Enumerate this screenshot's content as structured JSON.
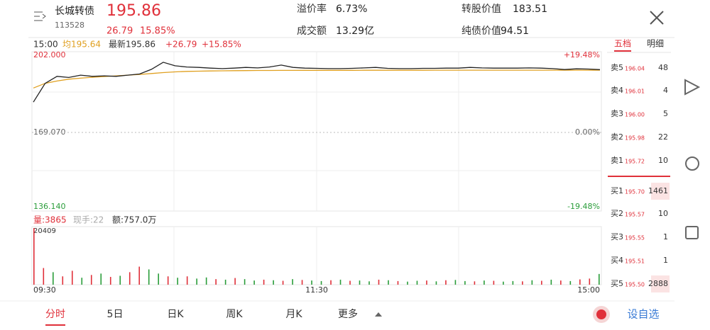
{
  "header": {
    "name": "长城转债",
    "code": "113528",
    "price": "195.86",
    "change": "26.79",
    "pct": "15.85%",
    "stats": [
      {
        "label": "溢价率",
        "value": "6.73%"
      },
      {
        "label": "转股价值",
        "value": "183.51"
      },
      {
        "label": "成交额",
        "value": "13.29亿"
      },
      {
        "label": "纯债价值",
        "value": "94.51"
      }
    ]
  },
  "info": {
    "time": "15:00",
    "avg": "均195.64",
    "latest": "最新195.86",
    "change": "+26.79",
    "pct": "+15.85%"
  },
  "price_chart": {
    "ylim": [
      136.14,
      202
    ],
    "yticks": [
      {
        "value": 202,
        "label": "202.000"
      },
      {
        "value": 169.07,
        "label": "169.070"
      },
      {
        "value": 136.14,
        "label": "136.140"
      }
    ],
    "pct_ticks": [
      "+19.48%",
      "0.00%",
      "-19.48%"
    ],
    "price": [
      182,
      190,
      193,
      192.5,
      193.5,
      193,
      193.2,
      193,
      193.5,
      194,
      196,
      199,
      197.5,
      197,
      196.8,
      196.5,
      196.3,
      196.5,
      196.8,
      196.6,
      197,
      197.8,
      196.8,
      196.5,
      196.4,
      196.3,
      196.3,
      196.4,
      196.6,
      196.8,
      196.4,
      196.3,
      196.3,
      196.4,
      196.4,
      196.5,
      196.5,
      196.8,
      196.6,
      196.5,
      196.5,
      196.5,
      196.6,
      196.5,
      196.3,
      195.9,
      196.2,
      196.1,
      195.86
    ],
    "avg": [
      188,
      190,
      191,
      191.8,
      192.2,
      192.6,
      192.9,
      193.2,
      193.5,
      193.8,
      194.2,
      194.6,
      194.9,
      195.1,
      195.2,
      195.3,
      195.35,
      195.4,
      195.45,
      195.5,
      195.5,
      195.52,
      195.53,
      195.55,
      195.56,
      195.57,
      195.58,
      195.58,
      195.59,
      195.6,
      195.6,
      195.6,
      195.61,
      195.61,
      195.62,
      195.62,
      195.62,
      195.63,
      195.63,
      195.63,
      195.63,
      195.64,
      195.64,
      195.64,
      195.64,
      195.64,
      195.64,
      195.64,
      195.64
    ],
    "price_color": "#222222",
    "avg_color": "#e0a020"
  },
  "volume_chart": {
    "label": "量:3865",
    "hand": "现手:22",
    "amount": "额:757.0万",
    "ylim": [
      0,
      20409
    ],
    "yticks": [
      20409
    ],
    "xticks": [
      "09:30",
      "11:30",
      "15:00"
    ],
    "values": [
      20409,
      6000,
      4500,
      3000,
      5000,
      2500,
      3500,
      4000,
      2800,
      3200,
      4500,
      6500,
      5500,
      4000,
      3000,
      2500,
      3000,
      2200,
      2600,
      2000,
      1800,
      2400,
      2000,
      1500,
      1800,
      1600,
      1400,
      2000,
      1700,
      1500,
      1300,
      1600,
      1800,
      1400,
      1500,
      1200,
      1800,
      1600,
      1300,
      1100,
      1400,
      1500,
      1200,
      1600,
      1700,
      1300,
      1200,
      1500,
      1400,
      1100,
      1300,
      1200,
      1600,
      1400,
      1800,
      1500,
      1300,
      1900,
      2200,
      3865
    ],
    "colors": [
      "#e0303a",
      "#e0303a",
      "#2a9d3a",
      "#e0303a",
      "#e0303a",
      "#2a9d3a",
      "#e0303a",
      "#2a9d3a",
      "#e0303a",
      "#2a9d3a",
      "#e0303a",
      "#e0303a",
      "#2a9d3a",
      "#2a9d3a",
      "#e0303a",
      "#2a9d3a",
      "#e0303a",
      "#2a9d3a",
      "#2a9d3a",
      "#e0303a",
      "#2a9d3a",
      "#e0303a",
      "#2a9d3a",
      "#2a9d3a",
      "#e0303a",
      "#2a9d3a",
      "#e0303a",
      "#2a9d3a",
      "#e0303a",
      "#2a9d3a",
      "#2a9d3a",
      "#e0303a",
      "#2a9d3a",
      "#e0303a",
      "#2a9d3a",
      "#2a9d3a",
      "#e0303a",
      "#2a9d3a",
      "#e0303a",
      "#2a9d3a",
      "#2a9d3a",
      "#e0303a",
      "#2a9d3a",
      "#e0303a",
      "#2a9d3a",
      "#2a9d3a",
      "#e0303a",
      "#2a9d3a",
      "#e0303a",
      "#2a9d3a",
      "#2a9d3a",
      "#e0303a",
      "#2a9d3a",
      "#e0303a",
      "#2a9d3a",
      "#e0303a",
      "#2a9d3a",
      "#e0303a",
      "#e0303a",
      "#2a9d3a"
    ]
  },
  "order_book": {
    "tabs": [
      "五档",
      "明细"
    ],
    "rows": [
      {
        "label": "卖5",
        "price": "196.04",
        "vol": "48"
      },
      {
        "label": "卖4",
        "price": "196.01",
        "vol": "4"
      },
      {
        "label": "卖3",
        "price": "196.00",
        "vol": "5"
      },
      {
        "label": "卖2",
        "price": "195.98",
        "vol": "22"
      },
      {
        "label": "卖1",
        "price": "195.72",
        "vol": "10"
      },
      {
        "label": "买1",
        "price": "195.70",
        "vol": "1461"
      },
      {
        "label": "买2",
        "price": "195.57",
        "vol": "10"
      },
      {
        "label": "买3",
        "price": "195.55",
        "vol": "1"
      },
      {
        "label": "买4",
        "price": "195.51",
        "vol": "1"
      },
      {
        "label": "买5",
        "price": "195.50",
        "vol": "2888"
      }
    ]
  },
  "bottom_tabs": [
    "分时",
    "5日",
    "日K",
    "周K",
    "月K",
    "更多"
  ],
  "watch": "设自选"
}
